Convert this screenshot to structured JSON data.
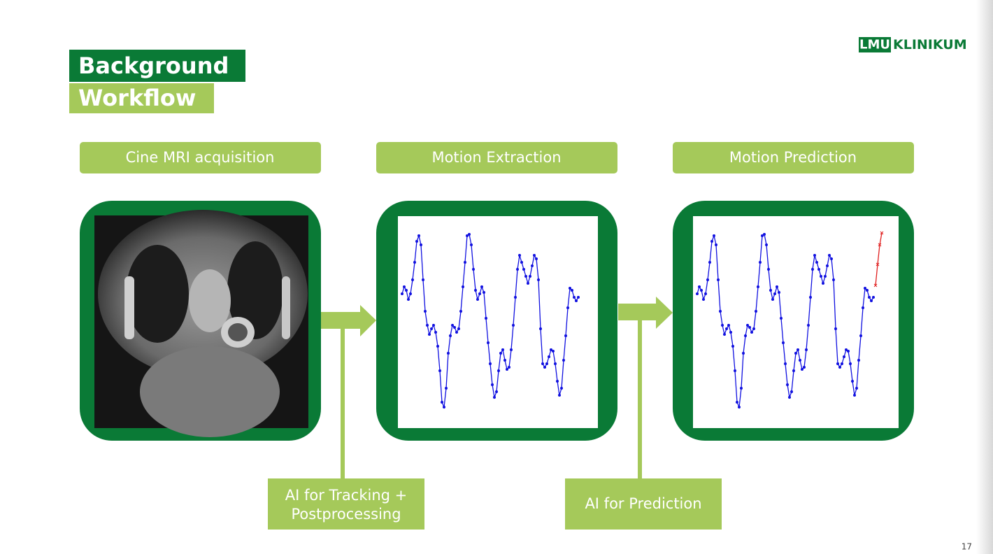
{
  "header": {
    "title": "Background",
    "subtitle": "Workflow",
    "logo_mark": "LMU",
    "logo_text": "KLINIKUM",
    "page_number": "17"
  },
  "steps": [
    {
      "label": "Cine MRI acquisition"
    },
    {
      "label": "Motion Extraction"
    },
    {
      "label": "Motion Prediction"
    }
  ],
  "ai_boxes": [
    {
      "lines": [
        "AI for Tracking +",
        "Postprocessing"
      ]
    },
    {
      "lines": [
        "AI for Prediction"
      ]
    }
  ],
  "motion_signal": {
    "color": "#1010e0",
    "values": [
      192,
      202,
      197,
      184,
      192,
      212,
      237,
      267,
      275,
      262,
      212,
      167,
      147,
      134,
      142,
      147,
      137,
      117,
      82,
      37,
      30,
      57,
      107,
      132,
      147,
      144,
      137,
      142,
      167,
      202,
      237,
      275,
      277,
      262,
      227,
      197,
      184,
      192,
      202,
      194,
      157,
      122,
      92,
      62,
      44,
      52,
      82,
      107,
      112,
      97,
      84,
      87,
      112,
      147,
      187,
      227,
      247,
      237,
      227,
      217,
      207,
      217,
      232,
      247,
      242,
      212,
      142,
      92,
      87,
      92,
      102,
      112,
      110,
      92,
      67,
      47,
      57,
      97,
      132,
      172,
      200,
      197,
      187,
      182,
      187
    ]
  },
  "predicted_signal": {
    "color": "#e02020",
    "values": [
      204,
      234,
      262,
      279
    ]
  }
}
